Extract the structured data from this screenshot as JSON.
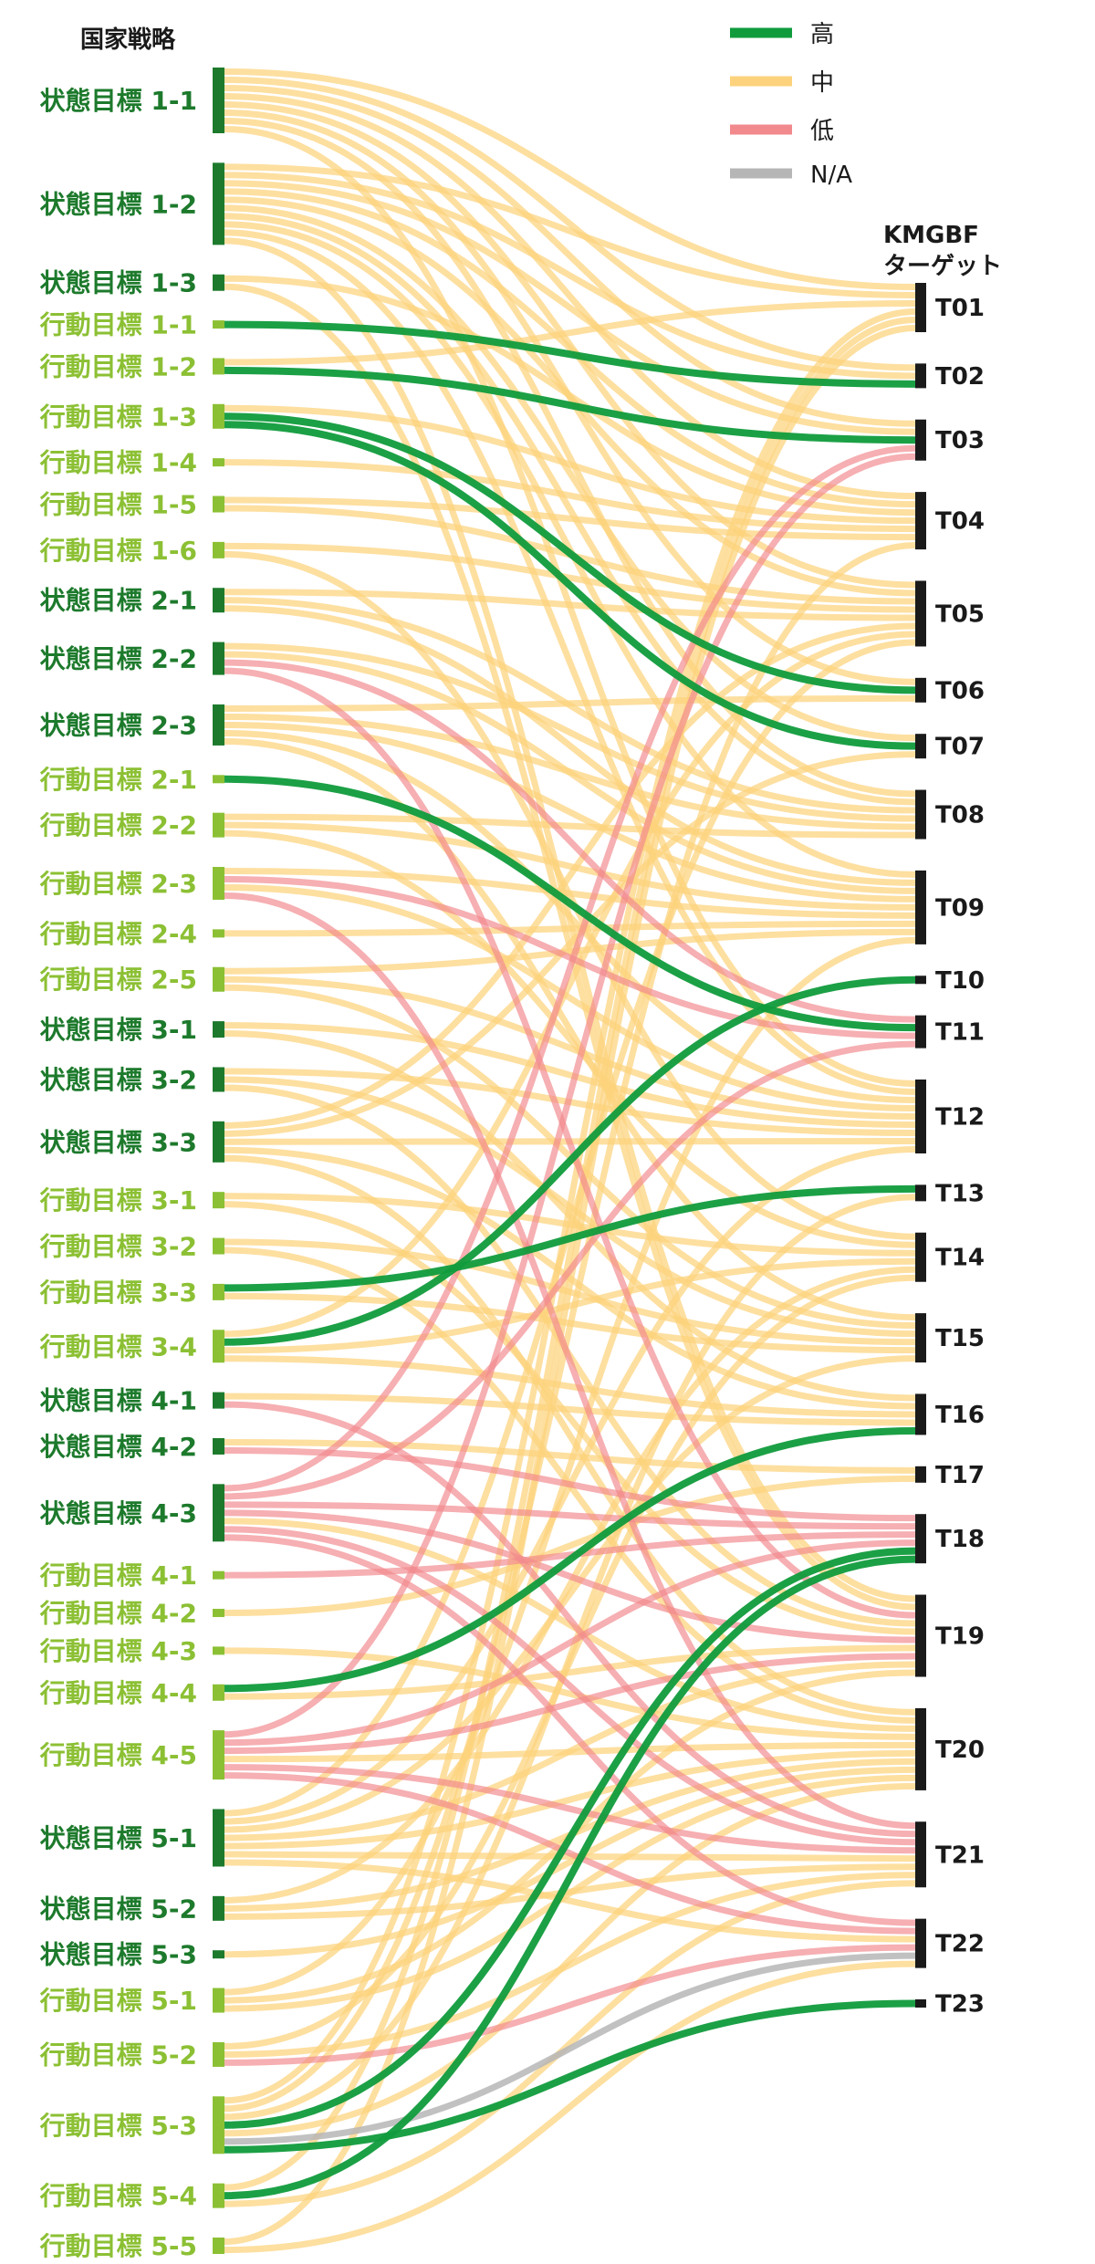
{
  "colors": {
    "high": "#109b3c",
    "medium": "#fcd27c",
    "low": "#f1898d",
    "na": "#b6b6b6",
    "state_goal": "#1d7a2c",
    "action_goal": "#8cc034",
    "target_bar": "#1a1a1a",
    "text_dark": "#1a1a1a"
  },
  "diagram": {
    "type": "sankey",
    "left_title": "国家戦略",
    "right_title_line1": "KMGBF",
    "right_title_line2": "ターゲット",
    "legend": [
      {
        "key": "high",
        "label": "高"
      },
      {
        "key": "medium",
        "label": "中"
      },
      {
        "key": "low",
        "label": "低"
      },
      {
        "key": "na",
        "label": "N/A"
      }
    ],
    "left_nodes": [
      {
        "id": "S1-1",
        "label": "状態目標 1-1",
        "kind": "state"
      },
      {
        "id": "S1-2",
        "label": "状態目標 1-2",
        "kind": "state"
      },
      {
        "id": "S1-3",
        "label": "状態目標 1-3",
        "kind": "state"
      },
      {
        "id": "A1-1",
        "label": "行動目標 1-1",
        "kind": "action"
      },
      {
        "id": "A1-2",
        "label": "行動目標 1-2",
        "kind": "action"
      },
      {
        "id": "A1-3",
        "label": "行動目標 1-3",
        "kind": "action"
      },
      {
        "id": "A1-4",
        "label": "行動目標 1-4",
        "kind": "action"
      },
      {
        "id": "A1-5",
        "label": "行動目標 1-5",
        "kind": "action"
      },
      {
        "id": "A1-6",
        "label": "行動目標 1-6",
        "kind": "action"
      },
      {
        "id": "S2-1",
        "label": "状態目標 2-1",
        "kind": "state"
      },
      {
        "id": "S2-2",
        "label": "状態目標 2-2",
        "kind": "state"
      },
      {
        "id": "S2-3",
        "label": "状態目標 2-3",
        "kind": "state"
      },
      {
        "id": "A2-1",
        "label": "行動目標 2-1",
        "kind": "action"
      },
      {
        "id": "A2-2",
        "label": "行動目標 2-2",
        "kind": "action"
      },
      {
        "id": "A2-3",
        "label": "行動目標 2-3",
        "kind": "action"
      },
      {
        "id": "A2-4",
        "label": "行動目標 2-4",
        "kind": "action"
      },
      {
        "id": "A2-5",
        "label": "行動目標 2-5",
        "kind": "action"
      },
      {
        "id": "S3-1",
        "label": "状態目標 3-1",
        "kind": "state"
      },
      {
        "id": "S3-2",
        "label": "状態目標 3-2",
        "kind": "state"
      },
      {
        "id": "S3-3",
        "label": "状態目標 3-3",
        "kind": "state"
      },
      {
        "id": "A3-1",
        "label": "行動目標 3-1",
        "kind": "action"
      },
      {
        "id": "A3-2",
        "label": "行動目標 3-2",
        "kind": "action"
      },
      {
        "id": "A3-3",
        "label": "行動目標 3-3",
        "kind": "action"
      },
      {
        "id": "A3-4",
        "label": "行動目標 3-4",
        "kind": "action"
      },
      {
        "id": "S4-1",
        "label": "状態目標 4-1",
        "kind": "state"
      },
      {
        "id": "S4-2",
        "label": "状態目標 4-2",
        "kind": "state"
      },
      {
        "id": "S4-3",
        "label": "状態目標 4-3",
        "kind": "state"
      },
      {
        "id": "A4-1",
        "label": "行動目標 4-1",
        "kind": "action"
      },
      {
        "id": "A4-2",
        "label": "行動目標 4-2",
        "kind": "action"
      },
      {
        "id": "A4-3",
        "label": "行動目標 4-3",
        "kind": "action"
      },
      {
        "id": "A4-4",
        "label": "行動目標 4-4",
        "kind": "action"
      },
      {
        "id": "A4-5",
        "label": "行動目標 4-5",
        "kind": "action"
      },
      {
        "id": "S5-1",
        "label": "状態目標 5-1",
        "kind": "state"
      },
      {
        "id": "S5-2",
        "label": "状態目標 5-2",
        "kind": "state"
      },
      {
        "id": "S5-3",
        "label": "状態目標 5-3",
        "kind": "state"
      },
      {
        "id": "A5-1",
        "label": "行動目標 5-1",
        "kind": "action"
      },
      {
        "id": "A5-2",
        "label": "行動目標 5-2",
        "kind": "action"
      },
      {
        "id": "A5-3",
        "label": "行動目標 5-3",
        "kind": "action"
      },
      {
        "id": "A5-4",
        "label": "行動目標 5-4",
        "kind": "action"
      },
      {
        "id": "A5-5",
        "label": "行動目標 5-5",
        "kind": "action"
      }
    ],
    "right_nodes": [
      {
        "id": "T01",
        "label": "T01"
      },
      {
        "id": "T02",
        "label": "T02"
      },
      {
        "id": "T03",
        "label": "T03"
      },
      {
        "id": "T04",
        "label": "T04"
      },
      {
        "id": "T05",
        "label": "T05"
      },
      {
        "id": "T06",
        "label": "T06"
      },
      {
        "id": "T07",
        "label": "T07"
      },
      {
        "id": "T08",
        "label": "T08"
      },
      {
        "id": "T09",
        "label": "T09"
      },
      {
        "id": "T10",
        "label": "T10"
      },
      {
        "id": "T11",
        "label": "T11"
      },
      {
        "id": "T12",
        "label": "T12"
      },
      {
        "id": "T13",
        "label": "T13"
      },
      {
        "id": "T14",
        "label": "T14"
      },
      {
        "id": "T15",
        "label": "T15"
      },
      {
        "id": "T16",
        "label": "T16"
      },
      {
        "id": "T17",
        "label": "T17"
      },
      {
        "id": "T18",
        "label": "T18"
      },
      {
        "id": "T19",
        "label": "T19"
      },
      {
        "id": "T20",
        "label": "T20"
      },
      {
        "id": "T21",
        "label": "T21"
      },
      {
        "id": "T22",
        "label": "T22"
      },
      {
        "id": "T23",
        "label": "T23"
      }
    ],
    "links": [
      [
        "S1-1",
        "T01",
        "medium"
      ],
      [
        "S1-1",
        "T02",
        "medium"
      ],
      [
        "S1-1",
        "T03",
        "medium"
      ],
      [
        "S1-1",
        "T04",
        "medium"
      ],
      [
        "S1-1",
        "T05",
        "medium"
      ],
      [
        "S1-1",
        "T06",
        "medium"
      ],
      [
        "S1-1",
        "T08",
        "medium"
      ],
      [
        "S1-1",
        "T12",
        "medium"
      ],
      [
        "S1-2",
        "T01",
        "medium"
      ],
      [
        "S1-2",
        "T02",
        "medium"
      ],
      [
        "S1-2",
        "T03",
        "medium"
      ],
      [
        "S1-2",
        "T04",
        "medium"
      ],
      [
        "S1-2",
        "T05",
        "medium"
      ],
      [
        "S1-2",
        "T07",
        "medium"
      ],
      [
        "S1-2",
        "T08",
        "medium"
      ],
      [
        "S1-2",
        "T09",
        "medium"
      ],
      [
        "S1-2",
        "T12",
        "medium"
      ],
      [
        "S1-2",
        "T19",
        "medium"
      ],
      [
        "S1-3",
        "T04",
        "medium"
      ],
      [
        "S1-3",
        "T19",
        "medium"
      ],
      [
        "A1-1",
        "T02",
        "high"
      ],
      [
        "A1-2",
        "T01",
        "medium"
      ],
      [
        "A1-2",
        "T03",
        "high"
      ],
      [
        "A1-3",
        "T06",
        "high"
      ],
      [
        "A1-3",
        "T07",
        "high"
      ],
      [
        "A1-3",
        "T04",
        "medium"
      ],
      [
        "A1-4",
        "T04",
        "medium"
      ],
      [
        "A1-5",
        "T04",
        "medium"
      ],
      [
        "A1-5",
        "T05",
        "medium"
      ],
      [
        "A1-6",
        "T05",
        "medium"
      ],
      [
        "A1-6",
        "T14",
        "medium"
      ],
      [
        "S2-1",
        "T05",
        "medium"
      ],
      [
        "S2-1",
        "T08",
        "medium"
      ],
      [
        "S2-1",
        "T09",
        "medium"
      ],
      [
        "S2-2",
        "T08",
        "medium"
      ],
      [
        "S2-2",
        "T09",
        "medium"
      ],
      [
        "S2-2",
        "T11",
        "low"
      ],
      [
        "S2-2",
        "T19",
        "low"
      ],
      [
        "S2-3",
        "T06",
        "medium"
      ],
      [
        "S2-3",
        "T08",
        "medium"
      ],
      [
        "S2-3",
        "T09",
        "medium"
      ],
      [
        "S2-3",
        "T12",
        "medium"
      ],
      [
        "S2-3",
        "T15",
        "medium"
      ],
      [
        "A2-1",
        "T11",
        "high"
      ],
      [
        "A2-2",
        "T08",
        "medium"
      ],
      [
        "A2-2",
        "T09",
        "medium"
      ],
      [
        "A2-2",
        "T14",
        "medium"
      ],
      [
        "A2-3",
        "T11",
        "low"
      ],
      [
        "A2-3",
        "T21",
        "low"
      ],
      [
        "A2-3",
        "T09",
        "medium"
      ],
      [
        "A2-3",
        "T12",
        "medium"
      ],
      [
        "A2-4",
        "T09",
        "medium"
      ],
      [
        "A2-5",
        "T09",
        "medium"
      ],
      [
        "A2-5",
        "T12",
        "medium"
      ],
      [
        "A2-5",
        "T15",
        "medium"
      ],
      [
        "S3-1",
        "T12",
        "medium"
      ],
      [
        "S3-1",
        "T16",
        "medium"
      ],
      [
        "S3-2",
        "T12",
        "medium"
      ],
      [
        "S3-2",
        "T15",
        "medium"
      ],
      [
        "S3-2",
        "T19",
        "medium"
      ],
      [
        "S3-3",
        "T05",
        "medium"
      ],
      [
        "S3-3",
        "T07",
        "medium"
      ],
      [
        "S3-3",
        "T12",
        "medium"
      ],
      [
        "S3-3",
        "T16",
        "medium"
      ],
      [
        "S3-3",
        "T20",
        "medium"
      ],
      [
        "A3-1",
        "T14",
        "medium"
      ],
      [
        "A3-1",
        "T19",
        "medium"
      ],
      [
        "A3-2",
        "T15",
        "medium"
      ],
      [
        "A3-2",
        "T20",
        "medium"
      ],
      [
        "A3-3",
        "T13",
        "high"
      ],
      [
        "A3-3",
        "T15",
        "medium"
      ],
      [
        "A3-4",
        "T10",
        "high"
      ],
      [
        "A3-4",
        "T05",
        "medium"
      ],
      [
        "A3-4",
        "T14",
        "medium"
      ],
      [
        "A3-4",
        "T16",
        "medium"
      ],
      [
        "S4-1",
        "T16",
        "medium"
      ],
      [
        "S4-1",
        "T21",
        "low"
      ],
      [
        "S4-2",
        "T17",
        "medium"
      ],
      [
        "S4-2",
        "T18",
        "low"
      ],
      [
        "S4-3",
        "T03",
        "low"
      ],
      [
        "S4-3",
        "T11",
        "low"
      ],
      [
        "S4-3",
        "T18",
        "low"
      ],
      [
        "S4-3",
        "T19",
        "low"
      ],
      [
        "S4-3",
        "T21",
        "low"
      ],
      [
        "S4-3",
        "T22",
        "low"
      ],
      [
        "S4-3",
        "T20",
        "medium"
      ],
      [
        "A4-1",
        "T18",
        "low"
      ],
      [
        "A4-2",
        "T17",
        "medium"
      ],
      [
        "A4-3",
        "T20",
        "medium"
      ],
      [
        "A4-4",
        "T16",
        "high"
      ],
      [
        "A4-4",
        "T19",
        "medium"
      ],
      [
        "A4-5",
        "T03",
        "low"
      ],
      [
        "A4-5",
        "T18",
        "low"
      ],
      [
        "A4-5",
        "T19",
        "low"
      ],
      [
        "A4-5",
        "T21",
        "low"
      ],
      [
        "A4-5",
        "T22",
        "low"
      ],
      [
        "A4-5",
        "T20",
        "medium"
      ],
      [
        "S5-1",
        "T05",
        "medium"
      ],
      [
        "S5-1",
        "T12",
        "medium"
      ],
      [
        "S5-1",
        "T15",
        "medium"
      ],
      [
        "S5-1",
        "T19",
        "medium"
      ],
      [
        "S5-1",
        "T20",
        "medium"
      ],
      [
        "S5-1",
        "T21",
        "medium"
      ],
      [
        "S5-1",
        "T22",
        "medium"
      ],
      [
        "S5-2",
        "T14",
        "medium"
      ],
      [
        "S5-2",
        "T20",
        "medium"
      ],
      [
        "S5-2",
        "T21",
        "medium"
      ],
      [
        "S5-3",
        "T20",
        "medium"
      ],
      [
        "A5-1",
        "T09",
        "medium"
      ],
      [
        "A5-1",
        "T19",
        "medium"
      ],
      [
        "A5-1",
        "T20",
        "medium"
      ],
      [
        "A5-2",
        "T22",
        "low"
      ],
      [
        "A5-2",
        "T14",
        "medium"
      ],
      [
        "A5-2",
        "T21",
        "medium"
      ],
      [
        "A5-3",
        "T18",
        "high"
      ],
      [
        "A5-3",
        "T23",
        "high"
      ],
      [
        "A5-3",
        "T22",
        "na"
      ],
      [
        "A5-3",
        "T01",
        "medium"
      ],
      [
        "A5-3",
        "T04",
        "medium"
      ],
      [
        "A5-3",
        "T13",
        "medium"
      ],
      [
        "A5-3",
        "T20",
        "medium"
      ],
      [
        "A5-4",
        "T18",
        "high"
      ],
      [
        "A5-4",
        "T01",
        "medium"
      ],
      [
        "A5-4",
        "T21",
        "medium"
      ],
      [
        "A5-5",
        "T01",
        "medium"
      ],
      [
        "A5-5",
        "T22",
        "medium"
      ]
    ]
  }
}
